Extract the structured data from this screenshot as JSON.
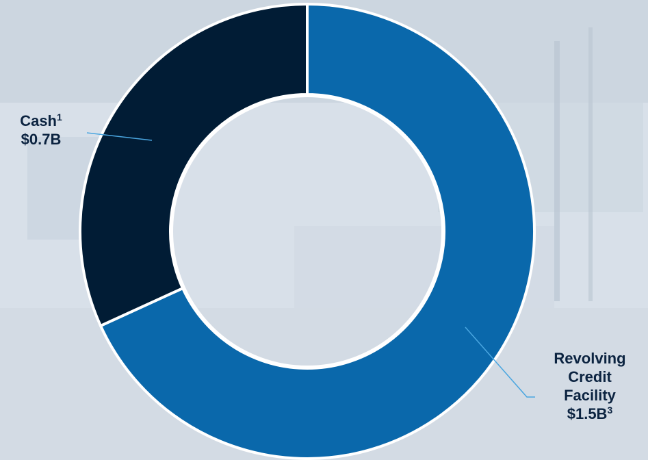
{
  "chart_data": {
    "type": "pie",
    "donut": true,
    "categories": [
      "Cash",
      "Revolving Credit Facility"
    ],
    "values": [
      0.7,
      1.5
    ],
    "unit": "$B",
    "colors": [
      "#011c35",
      "#0a68ab"
    ],
    "labels": [
      {
        "name": "Cash",
        "footnote": "1",
        "value": "$0.7B"
      },
      {
        "name": "Revolving Credit Facility",
        "footnote": "3",
        "value": "$1.5B"
      }
    ]
  }
}
